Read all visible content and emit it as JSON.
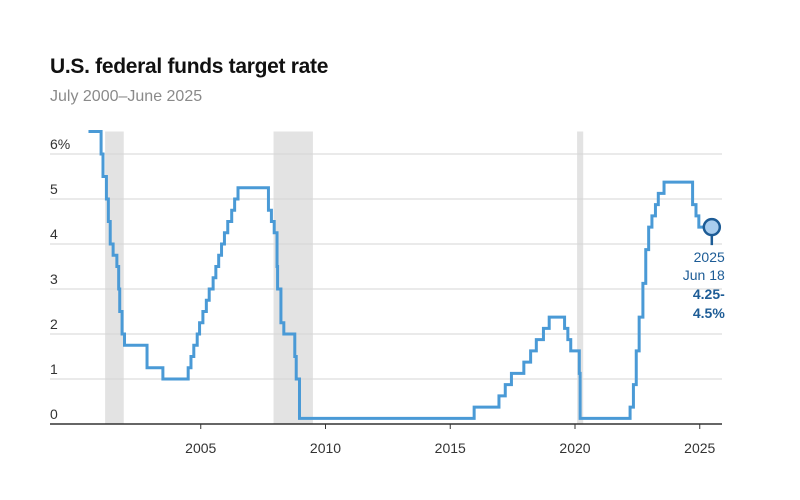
{
  "chart_data": {
    "type": "line",
    "title": "U.S. federal funds target rate",
    "subtitle": "July 2000–June 2025",
    "xlabel": "",
    "ylabel": "",
    "ylim": [
      0,
      6.5
    ],
    "yticks": [
      "0",
      "1",
      "2",
      "3",
      "4",
      "5",
      "6%"
    ],
    "xticks": [
      "2005",
      "2010",
      "2015",
      "2020",
      "2025"
    ],
    "grid": true,
    "step": true,
    "line_color": "#4a9ad6",
    "shade_color": "#e3e3e3",
    "recessions": [
      [
        "2001-03-01",
        "2001-11-30"
      ],
      [
        "2007-12-01",
        "2009-06-30"
      ],
      [
        "2020-02-01",
        "2020-04-30"
      ]
    ],
    "series": [
      {
        "points": [
          [
            "2000-07-01",
            6.5
          ],
          [
            "2001-01-03",
            6.0
          ],
          [
            "2001-01-31",
            5.5
          ],
          [
            "2001-03-20",
            5.0
          ],
          [
            "2001-04-18",
            4.5
          ],
          [
            "2001-05-15",
            4.0
          ],
          [
            "2001-06-27",
            3.75
          ],
          [
            "2001-08-21",
            3.5
          ],
          [
            "2001-09-17",
            3.0
          ],
          [
            "2001-10-02",
            2.5
          ],
          [
            "2001-11-06",
            2.0
          ],
          [
            "2001-12-11",
            1.75
          ],
          [
            "2002-11-06",
            1.25
          ],
          [
            "2003-06-25",
            1.0
          ],
          [
            "2004-06-30",
            1.25
          ],
          [
            "2004-08-10",
            1.5
          ],
          [
            "2004-09-21",
            1.75
          ],
          [
            "2004-11-10",
            2.0
          ],
          [
            "2004-12-14",
            2.25
          ],
          [
            "2005-02-02",
            2.5
          ],
          [
            "2005-03-22",
            2.75
          ],
          [
            "2005-05-03",
            3.0
          ],
          [
            "2005-06-30",
            3.25
          ],
          [
            "2005-08-09",
            3.5
          ],
          [
            "2005-09-20",
            3.75
          ],
          [
            "2005-11-01",
            4.0
          ],
          [
            "2005-12-13",
            4.25
          ],
          [
            "2006-01-31",
            4.5
          ],
          [
            "2006-03-28",
            4.75
          ],
          [
            "2006-05-10",
            5.0
          ],
          [
            "2006-06-29",
            5.25
          ],
          [
            "2007-09-18",
            4.75
          ],
          [
            "2007-10-31",
            4.5
          ],
          [
            "2007-12-11",
            4.25
          ],
          [
            "2008-01-22",
            3.5
          ],
          [
            "2008-01-30",
            3.0
          ],
          [
            "2008-03-18",
            2.25
          ],
          [
            "2008-04-30",
            2.0
          ],
          [
            "2008-10-08",
            1.5
          ],
          [
            "2008-10-29",
            1.0
          ],
          [
            "2008-12-16",
            0.125
          ],
          [
            "2015-12-16",
            0.375
          ],
          [
            "2016-12-14",
            0.625
          ],
          [
            "2017-03-15",
            0.875
          ],
          [
            "2017-06-14",
            1.125
          ],
          [
            "2017-12-13",
            1.375
          ],
          [
            "2018-03-21",
            1.625
          ],
          [
            "2018-06-13",
            1.875
          ],
          [
            "2018-09-26",
            2.125
          ],
          [
            "2018-12-19",
            2.375
          ],
          [
            "2019-07-31",
            2.125
          ],
          [
            "2019-09-18",
            1.875
          ],
          [
            "2019-10-30",
            1.625
          ],
          [
            "2020-03-03",
            1.125
          ],
          [
            "2020-03-15",
            0.125
          ],
          [
            "2022-03-16",
            0.375
          ],
          [
            "2022-05-04",
            0.875
          ],
          [
            "2022-06-15",
            1.625
          ],
          [
            "2022-07-27",
            2.375
          ],
          [
            "2022-09-21",
            3.125
          ],
          [
            "2022-11-02",
            3.875
          ],
          [
            "2022-12-14",
            4.375
          ],
          [
            "2023-02-01",
            4.625
          ],
          [
            "2023-03-22",
            4.875
          ],
          [
            "2023-05-03",
            5.125
          ],
          [
            "2023-07-26",
            5.375
          ],
          [
            "2024-09-18",
            4.875
          ],
          [
            "2024-11-07",
            4.625
          ],
          [
            "2024-12-18",
            4.375
          ],
          [
            "2025-06-18",
            4.375
          ]
        ]
      }
    ],
    "annotation": {
      "year": "2025",
      "date": "Jun 18",
      "value_line1": "4.25-",
      "value_line2": "4.5%",
      "color": "#1d5c96"
    }
  }
}
